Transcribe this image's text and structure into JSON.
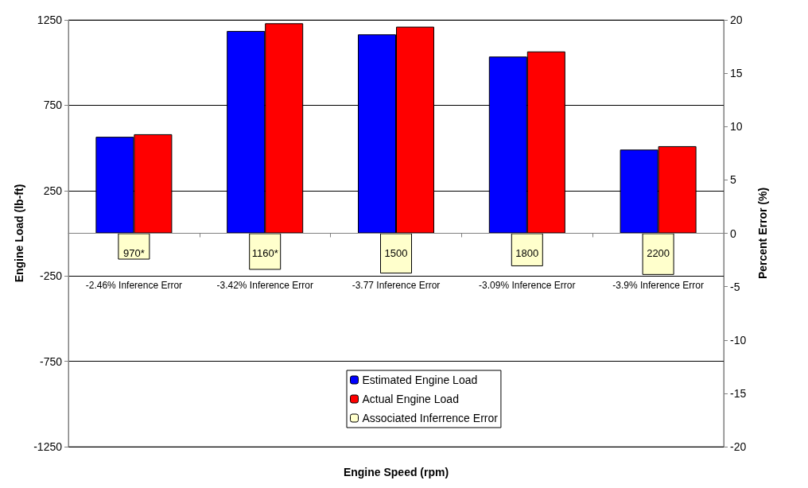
{
  "chart_data": {
    "type": "bar",
    "xlabel": "Engine Speed (rpm)",
    "ylabel": "Engine Load (lb-ft)",
    "y2label": "Percent Error (%)",
    "categories": [
      "970*",
      "1160*",
      "1500",
      "1800",
      "2200"
    ],
    "series": [
      {
        "name": "Estimated Engine Load",
        "color": "#0000ff",
        "values": [
          565,
          1185,
          1165,
          1035,
          490
        ]
      },
      {
        "name": "Actual Engine Load",
        "color": "#ff0000",
        "values": [
          580,
          1230,
          1210,
          1065,
          510
        ]
      },
      {
        "name": "Associated Inferrence Error",
        "color": "#ffffcc",
        "axis": "y2",
        "values": [
          -2.46,
          -3.42,
          -3.77,
          -3.09,
          -3.9
        ],
        "value_labels": [
          "-2.46% Inference Error",
          "-3.42% Inference Error",
          "-3.77 Inference Error",
          "-3.09% Inference Error",
          "-3.9% Inference Error"
        ]
      }
    ],
    "ylim": [
      -1250,
      1250
    ],
    "yticks": [
      -1250,
      -750,
      -250,
      250,
      750,
      1250
    ],
    "y2lim": [
      -20,
      20
    ],
    "y2ticks": [
      -20,
      -15,
      -10,
      -5,
      0,
      5,
      10,
      15,
      20
    ],
    "grid": "y",
    "legend": "bottom"
  }
}
